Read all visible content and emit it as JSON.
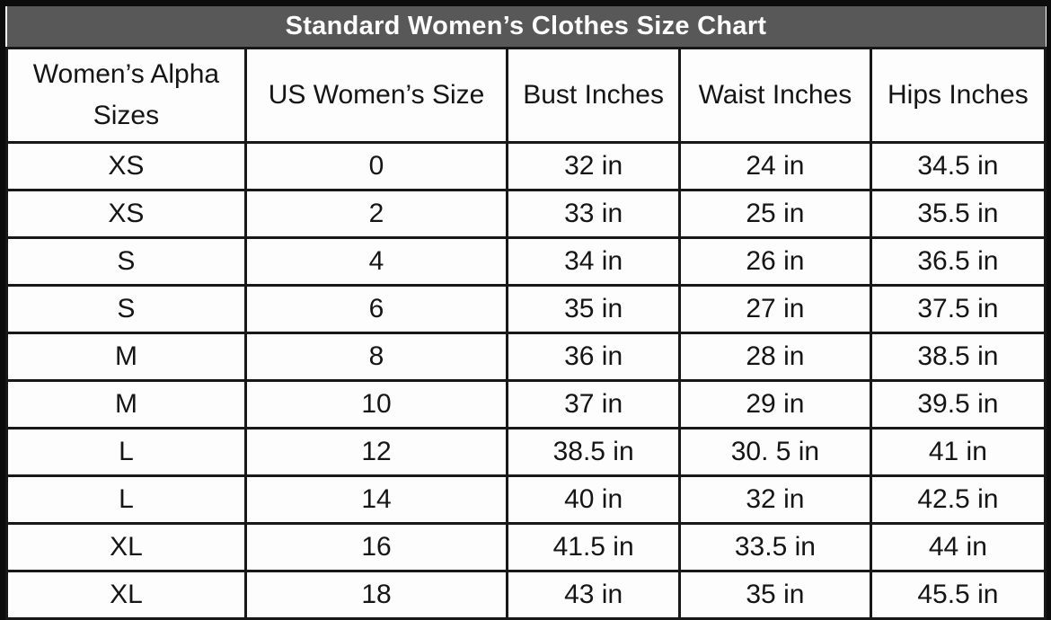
{
  "page": {
    "background": "#fdfdfd",
    "frame_border_color": "#0c0c0c",
    "grid_border_color": "#181818"
  },
  "chart_data": {
    "type": "table",
    "title": "Standard Women’s Clothes Size Chart",
    "title_bg": "#585858",
    "title_color": "#ffffff",
    "grid": true,
    "columns": [
      "Women’s Alpha Sizes",
      "US Women’s Size",
      "Bust Inches",
      "Waist Inches",
      "Hips Inches"
    ],
    "rows": [
      [
        "XS",
        "0",
        "32 in",
        "24 in",
        "34.5 in"
      ],
      [
        "XS",
        "2",
        "33 in",
        "25 in",
        "35.5 in"
      ],
      [
        "S",
        "4",
        "34 in",
        "26 in",
        "36.5 in"
      ],
      [
        "S",
        "6",
        "35 in",
        "27 in",
        "37.5 in"
      ],
      [
        "M",
        "8",
        "36 in",
        "28 in",
        "38.5 in"
      ],
      [
        "M",
        "10",
        "37 in",
        "29 in",
        "39.5 in"
      ],
      [
        "L",
        "12",
        "38.5 in",
        "30. 5 in",
        "41 in"
      ],
      [
        "L",
        "14",
        "40 in",
        "32 in",
        "42.5 in"
      ],
      [
        "XL",
        "16",
        "41.5 in",
        "33.5 in",
        "44 in"
      ],
      [
        "XL",
        "18",
        "43 in",
        "35 in",
        "45.5 in"
      ]
    ]
  }
}
